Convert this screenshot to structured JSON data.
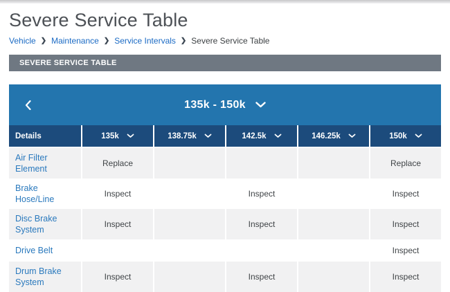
{
  "page": {
    "title": "Severe Service Table",
    "breadcrumb": {
      "separator": "❯",
      "items": [
        {
          "label": "Vehicle",
          "link": true
        },
        {
          "label": "Maintenance",
          "link": true
        },
        {
          "label": "Service Intervals",
          "link": true
        },
        {
          "label": "Severe Service Table",
          "link": false
        }
      ]
    },
    "section_header": "SEVERE SERVICE TABLE"
  },
  "range_selector": {
    "label": "135k - 150k"
  },
  "table": {
    "columns": [
      {
        "label": "Details",
        "dropdown": false
      },
      {
        "label": "135k",
        "dropdown": true
      },
      {
        "label": "138.75k",
        "dropdown": true
      },
      {
        "label": "142.5k",
        "dropdown": true
      },
      {
        "label": "146.25k",
        "dropdown": true
      },
      {
        "label": "150k",
        "dropdown": true
      }
    ],
    "rows": [
      {
        "label": "Air Filter Element",
        "cells": [
          "Replace",
          "",
          "",
          "",
          "Replace"
        ]
      },
      {
        "label": "Brake Hose/Line",
        "cells": [
          "Inspect",
          "",
          "Inspect",
          "",
          "Inspect"
        ]
      },
      {
        "label": "Disc Brake\nSystem",
        "cells": [
          "Inspect",
          "",
          "Inspect",
          "",
          "Inspect"
        ]
      },
      {
        "label": "Drive Belt",
        "cells": [
          "",
          "",
          "",
          "",
          "Inspect"
        ]
      },
      {
        "label": "Drum Brake\nSystem",
        "cells": [
          "Inspect",
          "",
          "Inspect",
          "",
          "Inspect"
        ]
      }
    ]
  },
  "colors": {
    "banner_blue": "#2375ae",
    "header_navy": "#1c4b7c",
    "section_gray": "#6f7882",
    "row_stripe": "#f1f1f2",
    "link_blue": "#2a79bd",
    "breadcrumb_blue": "#1a6ac4"
  }
}
